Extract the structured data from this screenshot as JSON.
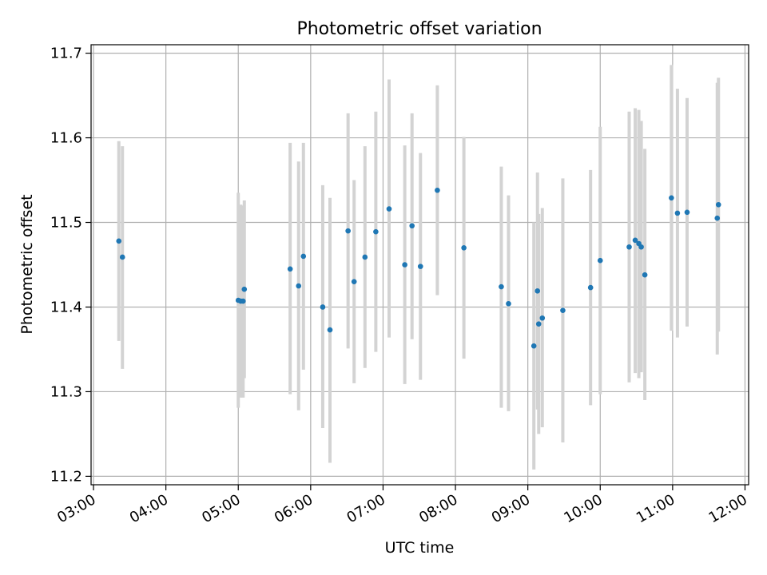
{
  "chart_data": {
    "type": "scatter",
    "title": "Photometric offset variation",
    "xlabel": "UTC time",
    "ylabel": "Photometric offset",
    "x_ticks": [
      "03:00",
      "04:00",
      "05:00",
      "06:00",
      "07:00",
      "08:00",
      "09:00",
      "10:00",
      "11:00",
      "12:00"
    ],
    "y_ticks": [
      "11.2",
      "11.3",
      "11.4",
      "11.5",
      "11.6",
      "11.7"
    ],
    "x_tick_values": [
      "03:00",
      "04:00",
      "05:00",
      "06:00",
      "07:00",
      "08:00",
      "09:00",
      "10:00",
      "11:00",
      "12:00"
    ],
    "y_tick_values": [
      11.2,
      11.3,
      11.4,
      11.5,
      11.6,
      11.7
    ],
    "xlim": [
      "02:58",
      "12:03"
    ],
    "ylim": [
      11.19,
      11.71
    ],
    "grid": true,
    "colors": {
      "point": "#1f77b4",
      "errorbar": "#d3d3d3",
      "grid": "#b0b0b0"
    },
    "points": [
      {
        "t": "03:21",
        "y": 11.478,
        "lo": 11.36,
        "hi": 11.596
      },
      {
        "t": "03:24",
        "y": 11.459,
        "lo": 11.327,
        "hi": 11.59
      },
      {
        "t": "05:00",
        "y": 11.408,
        "lo": 11.281,
        "hi": 11.535
      },
      {
        "t": "05:02",
        "y": 11.407,
        "lo": 11.293,
        "hi": 11.521
      },
      {
        "t": "05:04",
        "y": 11.407,
        "lo": 11.293,
        "hi": 11.52
      },
      {
        "t": "05:05",
        "y": 11.421,
        "lo": 11.316,
        "hi": 11.526
      },
      {
        "t": "05:43",
        "y": 11.445,
        "lo": 11.297,
        "hi": 11.594
      },
      {
        "t": "05:50",
        "y": 11.425,
        "lo": 11.278,
        "hi": 11.572
      },
      {
        "t": "05:54",
        "y": 11.46,
        "lo": 11.326,
        "hi": 11.594
      },
      {
        "t": "06:10",
        "y": 11.4,
        "lo": 11.257,
        "hi": 11.544
      },
      {
        "t": "06:16",
        "y": 11.373,
        "lo": 11.216,
        "hi": 11.529
      },
      {
        "t": "06:31",
        "y": 11.49,
        "lo": 11.351,
        "hi": 11.629
      },
      {
        "t": "06:36",
        "y": 11.43,
        "lo": 11.31,
        "hi": 11.55
      },
      {
        "t": "06:45",
        "y": 11.459,
        "lo": 11.328,
        "hi": 11.59
      },
      {
        "t": "06:54",
        "y": 11.489,
        "lo": 11.347,
        "hi": 11.631
      },
      {
        "t": "07:05",
        "y": 11.516,
        "lo": 11.364,
        "hi": 11.669
      },
      {
        "t": "07:18",
        "y": 11.45,
        "lo": 11.309,
        "hi": 11.591
      },
      {
        "t": "07:24",
        "y": 11.496,
        "lo": 11.362,
        "hi": 11.629
      },
      {
        "t": "07:31",
        "y": 11.448,
        "lo": 11.314,
        "hi": 11.582
      },
      {
        "t": "07:45",
        "y": 11.538,
        "lo": 11.414,
        "hi": 11.662
      },
      {
        "t": "08:07",
        "y": 11.47,
        "lo": 11.339,
        "hi": 11.601
      },
      {
        "t": "08:38",
        "y": 11.424,
        "lo": 11.281,
        "hi": 11.566
      },
      {
        "t": "08:44",
        "y": 11.404,
        "lo": 11.277,
        "hi": 11.532
      },
      {
        "t": "09:05",
        "y": 11.354,
        "lo": 11.208,
        "hi": 11.5
      },
      {
        "t": "09:08",
        "y": 11.419,
        "lo": 11.279,
        "hi": 11.559
      },
      {
        "t": "09:09",
        "y": 11.38,
        "lo": 11.25,
        "hi": 11.51
      },
      {
        "t": "09:12",
        "y": 11.387,
        "lo": 11.258,
        "hi": 11.517
      },
      {
        "t": "09:29",
        "y": 11.396,
        "lo": 11.24,
        "hi": 11.552
      },
      {
        "t": "09:52",
        "y": 11.423,
        "lo": 11.284,
        "hi": 11.562
      },
      {
        "t": "10:00",
        "y": 11.455,
        "lo": 11.297,
        "hi": 11.613
      },
      {
        "t": "10:24",
        "y": 11.471,
        "lo": 11.311,
        "hi": 11.631
      },
      {
        "t": "10:29",
        "y": 11.479,
        "lo": 11.322,
        "hi": 11.635
      },
      {
        "t": "10:32",
        "y": 11.475,
        "lo": 11.316,
        "hi": 11.633
      },
      {
        "t": "10:34",
        "y": 11.471,
        "lo": 11.323,
        "hi": 11.62
      },
      {
        "t": "10:37",
        "y": 11.438,
        "lo": 11.29,
        "hi": 11.587
      },
      {
        "t": "10:59",
        "y": 11.529,
        "lo": 11.372,
        "hi": 11.686
      },
      {
        "t": "11:04",
        "y": 11.511,
        "lo": 11.364,
        "hi": 11.658
      },
      {
        "t": "11:12",
        "y": 11.512,
        "lo": 11.377,
        "hi": 11.647
      },
      {
        "t": "11:37",
        "y": 11.505,
        "lo": 11.344,
        "hi": 11.665
      },
      {
        "t": "11:38",
        "y": 11.521,
        "lo": 11.371,
        "hi": 11.671
      }
    ]
  }
}
